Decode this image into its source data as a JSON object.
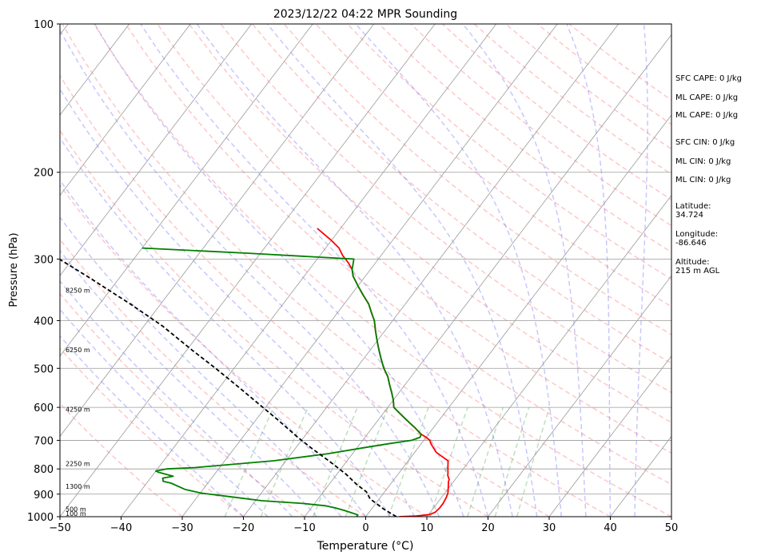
{
  "chart_data": {
    "type": "skew-t",
    "title": "2023/12/22 04:22 MPR Sounding",
    "xlabel": "Temperature (°C)",
    "ylabel": "Pressure (hPa)",
    "xlim": [
      -50,
      50
    ],
    "ylim": [
      1000,
      100
    ],
    "y_scale": "log",
    "grid": true,
    "x_ticks": [
      "−50",
      "−40",
      "−30",
      "−20",
      "−10",
      "0",
      "10",
      "20",
      "30",
      "40",
      "50"
    ],
    "y_ticks": [
      "100",
      "200",
      "300",
      "400",
      "500",
      "600",
      "700",
      "800",
      "900",
      "1000"
    ],
    "height_labels": [
      {
        "label": "100 m",
        "p": 1000
      },
      {
        "label": "500 m",
        "p": 965
      },
      {
        "label": "1300 m",
        "p": 868
      },
      {
        "label": "2250 m",
        "p": 780
      },
      {
        "label": "4250 m",
        "p": 605
      },
      {
        "label": "6250 m",
        "p": 458
      },
      {
        "label": "8250 m",
        "p": 347
      }
    ],
    "series": [
      {
        "color": "#ff0000",
        "data": [
          [
            5.5,
            1000
          ],
          [
            8.2,
            997
          ],
          [
            10.2,
            990
          ],
          [
            10.8,
            980
          ],
          [
            11,
            960
          ],
          [
            11,
            940
          ],
          [
            10.8,
            915
          ],
          [
            10.5,
            895
          ],
          [
            9.8,
            870
          ],
          [
            9.2,
            850
          ],
          [
            9,
            840
          ],
          [
            8.3,
            825
          ],
          [
            8,
            815
          ],
          [
            7.5,
            800
          ],
          [
            7,
            785
          ],
          [
            6.5,
            770
          ],
          [
            5,
            755
          ],
          [
            3.5,
            740
          ],
          [
            2.5,
            725
          ],
          [
            1.5,
            710
          ],
          [
            1,
            700
          ],
          [
            0,
            690
          ],
          [
            -1.2,
            680
          ],
          [
            -3,
            660
          ],
          [
            -4.5,
            645
          ],
          [
            -6,
            630
          ],
          [
            -7.5,
            615
          ],
          [
            -9,
            600
          ],
          [
            -10,
            580
          ],
          [
            -11.2,
            560
          ],
          [
            -12.5,
            540
          ],
          [
            -13.8,
            520
          ],
          [
            -15.5,
            500
          ],
          [
            -17,
            480
          ],
          [
            -18.5,
            460
          ],
          [
            -20,
            440
          ],
          [
            -21.5,
            420
          ],
          [
            -23,
            400
          ],
          [
            -24.5,
            385
          ],
          [
            -26,
            370
          ],
          [
            -28,
            355
          ],
          [
            -30,
            340
          ],
          [
            -32,
            325
          ],
          [
            -33,
            315
          ],
          [
            -34.5,
            305
          ],
          [
            -36.3,
            295
          ],
          [
            -37.8,
            285
          ],
          [
            -40,
            275
          ],
          [
            -42,
            267
          ],
          [
            -43.8,
            260
          ]
        ]
      },
      {
        "color": "#008000",
        "data": [
          [
            -1.5,
            1000
          ],
          [
            -1.5,
            992
          ],
          [
            -2.8,
            982
          ],
          [
            -4.3,
            971
          ],
          [
            -6,
            960
          ],
          [
            -8,
            950
          ],
          [
            -12,
            940
          ],
          [
            -19,
            928
          ],
          [
            -25,
            910
          ],
          [
            -30,
            895
          ],
          [
            -33,
            880
          ],
          [
            -36,
            855
          ],
          [
            -37.5,
            848
          ],
          [
            -38,
            835
          ],
          [
            -36.5,
            828
          ],
          [
            -39.5,
            812
          ],
          [
            -40,
            808
          ],
          [
            -38.5,
            800
          ],
          [
            -34,
            795
          ],
          [
            -22,
            770
          ],
          [
            -14,
            745
          ],
          [
            -9,
            725
          ],
          [
            -5,
            710
          ],
          [
            -2,
            700
          ],
          [
            -1,
            690
          ],
          [
            -1.2,
            680
          ],
          [
            -3,
            660
          ],
          [
            -4.5,
            645
          ],
          [
            -6,
            630
          ],
          [
            -7.5,
            615
          ],
          [
            -9,
            600
          ],
          [
            -10,
            580
          ],
          [
            -11.2,
            560
          ],
          [
            -12.5,
            540
          ],
          [
            -13.8,
            520
          ],
          [
            -15.5,
            500
          ],
          [
            -17,
            480
          ],
          [
            -18.5,
            460
          ],
          [
            -20,
            440
          ],
          [
            -21.5,
            420
          ],
          [
            -23,
            400
          ],
          [
            -24.5,
            385
          ],
          [
            -26,
            370
          ],
          [
            -28,
            355
          ],
          [
            -30,
            340
          ],
          [
            -32,
            325
          ],
          [
            -33,
            315
          ],
          [
            -34,
            300
          ],
          [
            -52,
            292
          ],
          [
            -70,
            285
          ]
        ]
      },
      {
        "color": "#000000",
        "data": [
          [
            5,
            1000
          ],
          [
            2,
            965
          ],
          [
            -1.5,
            920
          ],
          [
            -3,
            890
          ],
          [
            -5.5,
            860
          ],
          [
            -8.5,
            820
          ],
          [
            -13,
            770
          ],
          [
            -17,
            730
          ],
          [
            -21,
            690
          ],
          [
            -26,
            640
          ],
          [
            -31,
            595
          ],
          [
            -37,
            545
          ],
          [
            -43,
            500
          ],
          [
            -49,
            460
          ],
          [
            -57,
            410
          ],
          [
            -65,
            370
          ],
          [
            -75,
            327
          ],
          [
            -85,
            290
          ],
          [
            -95,
            260
          ],
          [
            -99,
            255
          ]
        ]
      }
    ],
    "info_lines": [
      {
        "text": "SFC CAPE: 0 J/kg"
      },
      {
        "text": "ML CAPE: 0 J/kg"
      },
      {
        "text": "ML CAPE: 0 J/kg"
      },
      {
        "text": "SFC CIN: 0 J/kg"
      },
      {
        "text": "ML CIN: 0 J/kg"
      },
      {
        "text": "ML CIN: 0 J/kg"
      },
      {
        "text": "Latitude:"
      },
      {
        "text": "34.724"
      },
      {
        "text": "Longitude:"
      },
      {
        "text": "-86.646"
      },
      {
        "text": "Altitude:"
      },
      {
        "text": "215 m AGL"
      }
    ]
  }
}
